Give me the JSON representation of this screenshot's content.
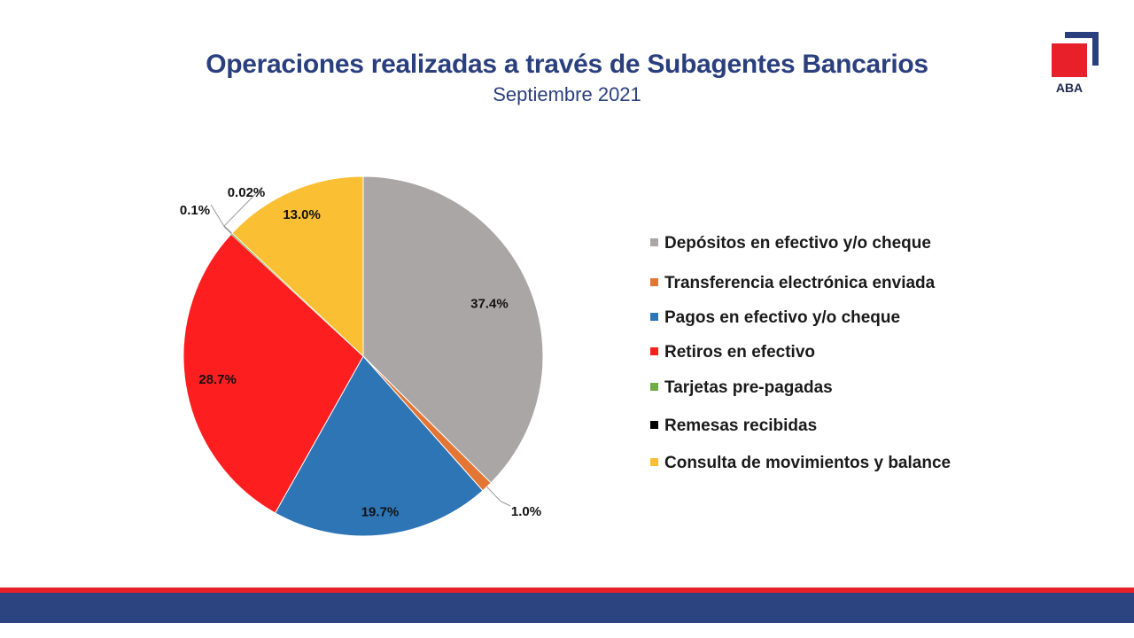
{
  "header": {
    "title": "Operaciones realizadas a través de Subagentes Bancarios",
    "subtitle": "Septiembre 2021"
  },
  "logo": {
    "text": "ABA"
  },
  "chart_data": {
    "type": "pie",
    "title": "Operaciones realizadas a través de Subagentes Bancarios",
    "subtitle": "Septiembre 2021",
    "legend_position": "right",
    "slices": [
      {
        "label": "Depósitos en efectivo y/o cheque",
        "value": 37.4,
        "display": "37.4%",
        "color": "#aba6a6"
      },
      {
        "label": "Transferencia electrónica enviada",
        "value": 1.0,
        "display": "1.0%",
        "color": "#e37535"
      },
      {
        "label": "Pagos en efectivo y/o cheque",
        "value": 19.7,
        "display": "19.7%",
        "color": "#2e75b6"
      },
      {
        "label": "Retiros en efectivo",
        "value": 28.7,
        "display": "28.7%",
        "color": "#fd1f1f"
      },
      {
        "label": "Tarjetas pre-pagadas",
        "value": 0.1,
        "display": "0.1%",
        "color": "#70ad47"
      },
      {
        "label": "Remesas recibidas",
        "value": 0.02,
        "display": "0.02%",
        "color": "#000000"
      },
      {
        "label": "Consulta de movimientos y balance",
        "value": 13.0,
        "display": "13.0%",
        "color": "#fbbf33"
      }
    ]
  }
}
